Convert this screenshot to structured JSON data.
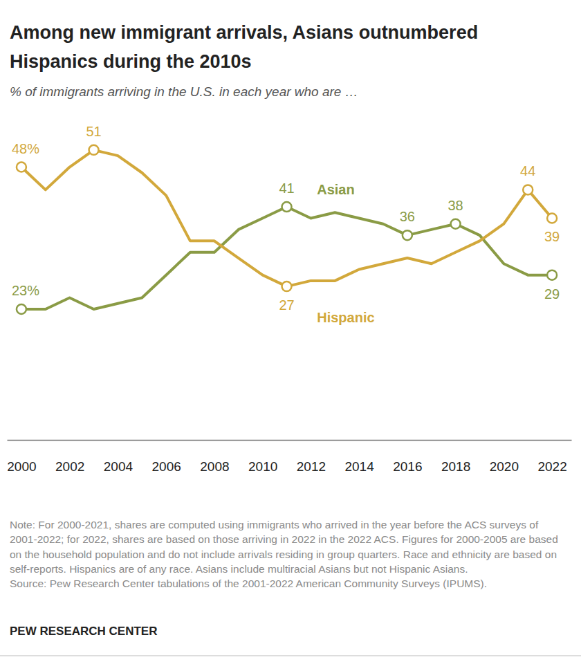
{
  "chart_data": {
    "type": "line",
    "title": "Among new immigrant arrivals, Asians outnumbered Hispanics during the 2010s",
    "subtitle": "% of immigrants arriving in the U.S. in each year who are …",
    "x": [
      2000,
      2001,
      2002,
      2003,
      2004,
      2005,
      2006,
      2007,
      2008,
      2009,
      2010,
      2011,
      2012,
      2013,
      2014,
      2015,
      2016,
      2017,
      2018,
      2019,
      2020,
      2021,
      2022
    ],
    "xlim": [
      1999.4,
      2022.8
    ],
    "xticks": [
      2000,
      2002,
      2004,
      2006,
      2008,
      2010,
      2012,
      2014,
      2016,
      2018,
      2020,
      2022
    ],
    "ylim": [
      0,
      55
    ],
    "tick_labels": "x",
    "grid": false,
    "data_labels": true,
    "series": [
      {
        "name": "Asian",
        "color": "#8a9b45",
        "marker": "circle",
        "values": [
          23,
          23,
          25,
          23,
          24,
          25,
          29,
          33,
          33,
          37,
          39,
          41,
          39,
          40,
          39,
          38,
          36,
          37,
          38,
          36,
          31,
          29,
          29
        ],
        "value_labels": [
          "23%",
          null,
          null,
          null,
          null,
          null,
          null,
          null,
          null,
          null,
          null,
          "41",
          null,
          null,
          null,
          null,
          "36",
          null,
          "38",
          null,
          null,
          null,
          "29"
        ]
      },
      {
        "name": "Hispanic",
        "color": "#d2a83b",
        "marker": "circle",
        "values": [
          48,
          44,
          48,
          51,
          50,
          47,
          43,
          35,
          35,
          32,
          29,
          27,
          28,
          28,
          30,
          31,
          32,
          31,
          33,
          35,
          38,
          44,
          39
        ],
        "value_labels": [
          "48%",
          null,
          null,
          "51",
          null,
          null,
          null,
          null,
          null,
          null,
          null,
          "27",
          null,
          null,
          null,
          null,
          null,
          null,
          null,
          null,
          null,
          "44",
          "39"
        ]
      }
    ],
    "note": "Note: For 2000-2021, shares are computed using immigrants who arrived in the year before the ACS surveys of 2001-2022; for 2022, shares are based on those arriving in 2022 in the 2022 ACS. Figures for 2000-2005 are based on the household population and do not include arrivals residing in group quarters. Race and ethnicity are based on self-reports. Hispanics are of any race. Asians include multiracial Asians but not Hispanic Asians.",
    "source": "Source: Pew Research Center tabulations of the 2001-2022 American Community Surveys (IPUMS).",
    "credit": "PEW RESEARCH CENTER"
  }
}
